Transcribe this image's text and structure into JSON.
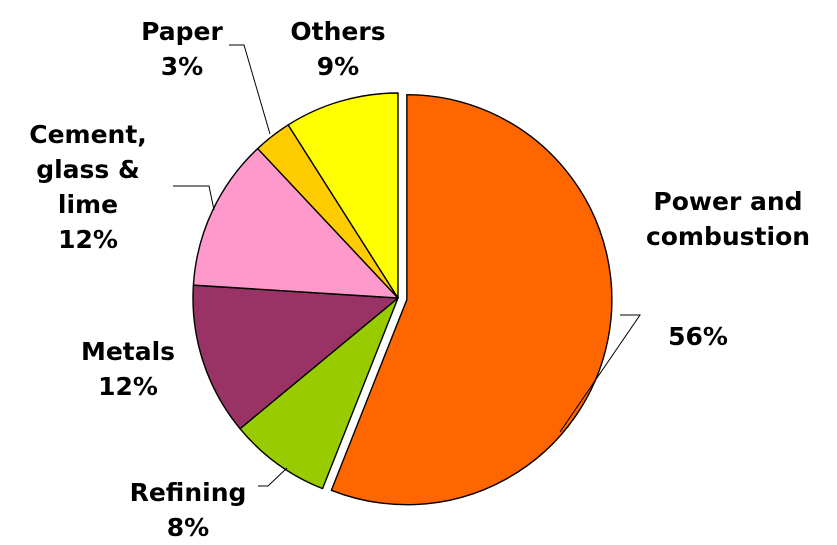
{
  "chart_data": {
    "type": "pie",
    "title": "",
    "slices": [
      {
        "category": "Power and combustion",
        "label_lines": [
          "Power and",
          "combustion"
        ],
        "percent_label": "56%",
        "value": 56,
        "color": "#ff6600",
        "exploded": true
      },
      {
        "category": "Refining",
        "label_lines": [
          "Refining"
        ],
        "percent_label": "8%",
        "value": 8,
        "color": "#99cc00",
        "exploded": false
      },
      {
        "category": "Metals",
        "label_lines": [
          "Metals"
        ],
        "percent_label": "12%",
        "value": 12,
        "color": "#993366",
        "exploded": false
      },
      {
        "category": "Cement, glass & lime",
        "label_lines": [
          "Cement,",
          "glass &",
          "lime"
        ],
        "percent_label": "12%",
        "value": 12,
        "color": "#ff99cc",
        "exploded": false
      },
      {
        "category": "Paper",
        "label_lines": [
          "Paper"
        ],
        "percent_label": "3%",
        "value": 3,
        "color": "#ffcc00",
        "exploded": false
      },
      {
        "category": "Others",
        "label_lines": [
          "Others"
        ],
        "percent_label": "9%",
        "value": 9,
        "color": "#ffff00",
        "exploded": false
      }
    ],
    "legend": "none",
    "data_labels": "category and percent, outside with leader lines"
  }
}
